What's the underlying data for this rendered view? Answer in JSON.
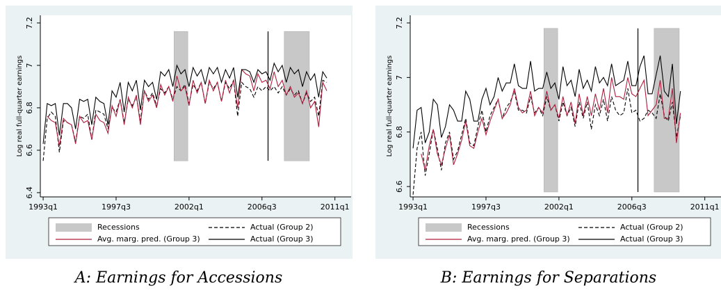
{
  "chart_data": [
    {
      "type": "line",
      "title": "A: Earnings for Accessions",
      "ylabel": "Log real full-quarter earnings",
      "categories": [
        "1993q1",
        null,
        null,
        null,
        null,
        null,
        null,
        null,
        null,
        null,
        null,
        null,
        null,
        null,
        null,
        null,
        null,
        null,
        "1997q3",
        null,
        null,
        null,
        null,
        null,
        null,
        null,
        null,
        null,
        null,
        null,
        null,
        null,
        null,
        null,
        null,
        null,
        "2002q1",
        null,
        null,
        null,
        null,
        null,
        null,
        null,
        null,
        null,
        null,
        null,
        null,
        null,
        null,
        null,
        null,
        null,
        "2006q3",
        null,
        null,
        null,
        null,
        null,
        null,
        null,
        null,
        null,
        null,
        null,
        null,
        null,
        null,
        null,
        null,
        null,
        "2011q1"
      ],
      "xlim": [
        -0.7,
        76
      ],
      "ylim": [
        6.38,
        7.236
      ],
      "yticks": [
        6.4,
        6.6,
        6.8,
        7,
        7.2
      ],
      "recessions": {
        "name": "Recessions",
        "color": "#c8c8c8",
        "spans": [
          [
            32.3,
            35.7
          ],
          [
            59.5,
            65.7
          ]
        ],
        "ylim": [
          6.55,
          7.16
        ]
      },
      "vline": 55.5,
      "series": [
        {
          "name": "Actual (Group 2)",
          "color": "#000000",
          "dash": true,
          "values": [
            6.55,
            6.75,
            6.78,
            6.76,
            6.59,
            6.74,
            6.73,
            6.72,
            6.64,
            6.76,
            6.75,
            6.77,
            6.65,
            6.79,
            6.78,
            6.77,
            6.7,
            6.8,
            6.78,
            6.84,
            6.73,
            6.84,
            6.81,
            6.85,
            6.74,
            6.88,
            6.84,
            6.87,
            6.81,
            6.89,
            6.87,
            6.9,
            6.84,
            6.9,
            6.88,
            6.91,
            6.82,
            6.91,
            6.88,
            6.92,
            6.82,
            6.92,
            6.89,
            6.92,
            6.83,
            6.92,
            6.89,
            6.93,
            6.76,
            6.92,
            6.9,
            6.89,
            6.85,
            6.9,
            6.88,
            6.9,
            6.88,
            6.9,
            6.87,
            6.9,
            6.86,
            6.89,
            6.86,
            6.88,
            6.82,
            6.87,
            6.83,
            6.85,
            6.76,
            6.93,
            6.92,
            null,
            null
          ]
        },
        {
          "name": "Avg. marg. pred. (Group 3)",
          "color": "#b01c3c",
          "dash": false,
          "values": [
            null,
            6.76,
            6.74,
            6.73,
            6.62,
            6.75,
            6.73,
            6.72,
            6.63,
            6.76,
            6.73,
            6.74,
            6.65,
            6.77,
            6.74,
            6.73,
            6.68,
            6.81,
            6.76,
            6.84,
            6.72,
            6.85,
            6.8,
            6.86,
            6.72,
            6.88,
            6.83,
            6.86,
            6.8,
            6.91,
            6.86,
            6.9,
            6.83,
            6.95,
            6.88,
            6.9,
            6.81,
            6.93,
            6.87,
            6.92,
            6.82,
            6.93,
            6.88,
            6.92,
            6.83,
            6.93,
            6.87,
            6.93,
            6.8,
            6.98,
            6.96,
            6.95,
            6.88,
            6.96,
            6.92,
            6.93,
            6.89,
            6.97,
            6.9,
            6.93,
            6.86,
            6.9,
            6.85,
            6.87,
            6.82,
            6.88,
            6.8,
            6.83,
            6.71,
            6.92,
            6.88,
            null,
            null
          ]
        },
        {
          "name": "Actual (Group 3)",
          "color": "#000000",
          "dash": false,
          "values": [
            6.63,
            6.82,
            6.81,
            6.82,
            6.67,
            6.82,
            6.82,
            6.8,
            6.7,
            6.84,
            6.83,
            6.84,
            6.72,
            6.85,
            6.83,
            6.82,
            6.72,
            6.88,
            6.85,
            6.92,
            6.78,
            6.92,
            6.88,
            6.93,
            6.79,
            6.93,
            6.9,
            6.92,
            6.84,
            6.97,
            6.95,
            6.98,
            6.9,
            7.0,
            6.96,
            6.98,
            6.9,
            6.99,
            6.95,
            6.98,
            6.91,
            6.99,
            6.96,
            6.99,
            6.92,
            6.98,
            6.94,
            6.99,
            6.85,
            6.98,
            6.98,
            6.97,
            6.92,
            6.98,
            6.96,
            6.97,
            6.93,
            7.01,
            6.97,
            7.0,
            6.92,
            6.99,
            6.96,
            6.98,
            6.9,
            6.97,
            6.93,
            6.96,
            6.85,
            6.97,
            6.94,
            null,
            null
          ]
        }
      ]
    },
    {
      "type": "line",
      "title": "B: Earnings for Separations",
      "ylabel": "Log real full-quarter earnings",
      "categories": [
        "1993q1",
        null,
        null,
        null,
        null,
        null,
        null,
        null,
        null,
        null,
        null,
        null,
        null,
        null,
        null,
        null,
        null,
        null,
        "1997q3",
        null,
        null,
        null,
        null,
        null,
        null,
        null,
        null,
        null,
        null,
        null,
        null,
        null,
        null,
        null,
        null,
        null,
        "2002q1",
        null,
        null,
        null,
        null,
        null,
        null,
        null,
        null,
        null,
        null,
        null,
        null,
        null,
        null,
        null,
        null,
        null,
        "2006q3",
        null,
        null,
        null,
        null,
        null,
        null,
        null,
        null,
        null,
        null,
        null,
        null,
        null,
        null,
        null,
        null,
        null,
        "2011q1"
      ],
      "xlim": [
        -0.7,
        76
      ],
      "ylim": [
        6.562,
        7.228
      ],
      "yticks": [
        6.6,
        6.8,
        7,
        7.2
      ],
      "recessions": {
        "name": "Recessions",
        "color": "#c8c8c8",
        "spans": [
          [
            32.3,
            35.7
          ],
          [
            59.5,
            65.7
          ]
        ],
        "ylim": [
          6.58,
          7.18
        ]
      },
      "vline": 55.5,
      "series": [
        {
          "name": "Actual (Group 2)",
          "color": "#000000",
          "dash": true,
          "values": [
            6.57,
            6.74,
            6.8,
            6.64,
            6.72,
            6.81,
            6.74,
            6.66,
            6.76,
            6.8,
            6.7,
            6.73,
            6.79,
            6.85,
            6.76,
            6.75,
            6.82,
            6.88,
            6.8,
            6.86,
            6.89,
            6.92,
            6.85,
            6.89,
            6.91,
            6.95,
            6.88,
            6.88,
            6.87,
            6.93,
            6.87,
            6.89,
            6.86,
            6.93,
            6.88,
            6.9,
            6.84,
            6.91,
            6.86,
            6.89,
            6.82,
            6.91,
            6.85,
            6.91,
            6.81,
            6.9,
            6.86,
            6.92,
            6.84,
            6.93,
            6.88,
            6.86,
            6.87,
            6.96,
            6.87,
            6.88,
            6.84,
            6.85,
            6.88,
            6.87,
            6.85,
            6.94,
            6.86,
            6.84,
            6.91,
            6.78,
            6.86,
            null,
            null,
            null,
            null,
            null,
            null
          ]
        },
        {
          "name": "Avg. marg. pred. (Group 3)",
          "color": "#b01c3c",
          "dash": false,
          "values": [
            null,
            null,
            6.72,
            6.66,
            6.75,
            6.81,
            6.72,
            6.68,
            6.74,
            6.79,
            6.68,
            6.72,
            6.77,
            6.84,
            6.75,
            6.74,
            6.8,
            6.85,
            6.79,
            6.84,
            6.88,
            6.92,
            6.85,
            6.87,
            6.9,
            6.96,
            6.89,
            6.87,
            6.88,
            6.95,
            6.86,
            6.89,
            6.87,
            6.95,
            6.88,
            6.9,
            6.85,
            6.93,
            6.86,
            6.91,
            6.83,
            6.94,
            6.86,
            6.93,
            6.86,
            6.94,
            6.88,
            6.96,
            6.87,
            7.0,
            6.93,
            6.93,
            6.92,
            7.0,
            6.94,
            6.93,
            6.96,
            6.99,
            6.86,
            6.88,
            6.9,
            6.99,
            6.85,
            6.85,
            6.96,
            6.76,
            6.87,
            null,
            null,
            null,
            null,
            null,
            null
          ]
        },
        {
          "name": "Actual (Group 3)",
          "color": "#000000",
          "dash": false,
          "values": [
            6.74,
            6.88,
            6.89,
            6.76,
            6.8,
            6.92,
            6.9,
            6.78,
            6.82,
            6.9,
            6.88,
            6.84,
            6.84,
            6.95,
            6.92,
            6.84,
            6.84,
            6.92,
            6.96,
            6.9,
            6.93,
            7.0,
            6.95,
            6.98,
            6.98,
            7.05,
            6.97,
            6.96,
            6.96,
            7.06,
            6.95,
            6.96,
            6.96,
            7.02,
            6.96,
            6.98,
            6.92,
            7.04,
            6.97,
            6.99,
            6.93,
            7.03,
            6.96,
            6.99,
            6.95,
            7.04,
            6.98,
            7.0,
            6.97,
            7.05,
            6.97,
            6.98,
            6.99,
            7.06,
            6.97,
            6.97,
            7.04,
            7.08,
            6.94,
            6.94,
            7.01,
            7.08,
            6.95,
            6.93,
            7.05,
            6.83,
            6.95,
            null,
            null,
            null,
            null,
            null,
            null
          ]
        }
      ]
    }
  ]
}
